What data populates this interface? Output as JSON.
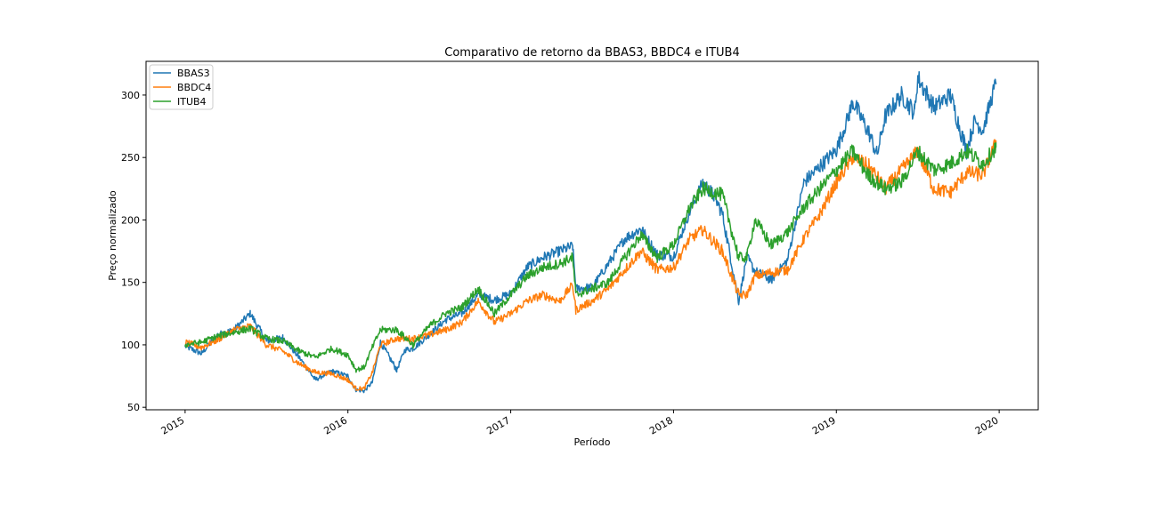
{
  "chart_data": {
    "type": "line",
    "title": "Comparativo de retorno da BBAS3, BBDC4 e ITUB4",
    "xlabel": "Período",
    "ylabel": "Preço normalizado",
    "x_ticks": [
      "2015",
      "2016",
      "2017",
      "2018",
      "2019",
      "2020"
    ],
    "y_ticks": [
      50,
      100,
      150,
      200,
      250,
      300
    ],
    "xlim": [
      2014.76,
      2020.24
    ],
    "ylim": [
      48,
      327
    ],
    "legend": "top-left",
    "grid": false,
    "colors": [
      "#1f77b4",
      "#ff7f0e",
      "#2ca02c"
    ],
    "series": [
      {
        "name": "BBAS3",
        "x": [
          2015.0,
          2015.1,
          2015.2,
          2015.3,
          2015.4,
          2015.5,
          2015.6,
          2015.7,
          2015.8,
          2015.9,
          2016.0,
          2016.05,
          2016.1,
          2016.15,
          2016.2,
          2016.3,
          2016.35,
          2016.4,
          2016.5,
          2016.6,
          2016.7,
          2016.8,
          2016.9,
          2017.0,
          2017.1,
          2017.2,
          2017.3,
          2017.38,
          2017.4,
          2017.5,
          2017.6,
          2017.7,
          2017.8,
          2017.9,
          2018.0,
          2018.1,
          2018.18,
          2018.25,
          2018.3,
          2018.35,
          2018.4,
          2018.45,
          2018.5,
          2018.6,
          2018.7,
          2018.8,
          2018.9,
          2019.0,
          2019.08,
          2019.1,
          2019.2,
          2019.25,
          2019.3,
          2019.4,
          2019.48,
          2019.5,
          2019.55,
          2019.6,
          2019.7,
          2019.8,
          2019.85,
          2019.9,
          2019.98
        ],
        "values": [
          99,
          93,
          108,
          112,
          125,
          103,
          106,
          90,
          72,
          79,
          75,
          64,
          63,
          70,
          102,
          80,
          96,
          97,
          108,
          120,
          125,
          140,
          136,
          141,
          162,
          170,
          175,
          179,
          145,
          146,
          165,
          185,
          193,
          172,
          171,
          207,
          230,
          219,
          205,
          170,
          135,
          170,
          159,
          152,
          168,
          230,
          243,
          256,
          285,
          295,
          270,
          252,
          283,
          300,
          286,
          314,
          302,
          290,
          300,
          255,
          280,
          272,
          310
        ]
      },
      {
        "name": "BBDC4",
        "x": [
          2015.0,
          2015.1,
          2015.2,
          2015.3,
          2015.4,
          2015.5,
          2015.6,
          2015.7,
          2015.8,
          2015.9,
          2016.0,
          2016.05,
          2016.1,
          2016.15,
          2016.2,
          2016.3,
          2016.4,
          2016.5,
          2016.6,
          2016.7,
          2016.8,
          2016.9,
          2017.0,
          2017.1,
          2017.2,
          2017.3,
          2017.38,
          2017.4,
          2017.5,
          2017.6,
          2017.7,
          2017.8,
          2017.9,
          2018.0,
          2018.1,
          2018.18,
          2018.3,
          2018.4,
          2018.45,
          2018.5,
          2018.6,
          2018.7,
          2018.8,
          2018.9,
          2019.0,
          2019.1,
          2019.2,
          2019.3,
          2019.4,
          2019.5,
          2019.6,
          2019.7,
          2019.8,
          2019.9,
          2019.98
        ],
        "values": [
          102,
          98,
          104,
          112,
          115,
          100,
          95,
          85,
          78,
          77,
          72,
          65,
          65,
          78,
          100,
          105,
          105,
          108,
          112,
          118,
          135,
          118,
          125,
          135,
          140,
          135,
          148,
          128,
          135,
          145,
          160,
          175,
          160,
          162,
          185,
          192,
          175,
          140,
          140,
          155,
          158,
          160,
          185,
          205,
          230,
          250,
          243,
          225,
          240,
          255,
          225,
          222,
          238,
          236,
          262
        ]
      },
      {
        "name": "ITUB4",
        "x": [
          2015.0,
          2015.1,
          2015.2,
          2015.3,
          2015.4,
          2015.5,
          2015.6,
          2015.7,
          2015.8,
          2015.9,
          2016.0,
          2016.05,
          2016.1,
          2016.15,
          2016.2,
          2016.3,
          2016.4,
          2016.5,
          2016.6,
          2016.7,
          2016.8,
          2016.9,
          2017.0,
          2017.1,
          2017.2,
          2017.3,
          2017.38,
          2017.4,
          2017.5,
          2017.6,
          2017.7,
          2017.8,
          2017.9,
          2018.0,
          2018.1,
          2018.18,
          2018.3,
          2018.4,
          2018.45,
          2018.5,
          2018.6,
          2018.7,
          2018.8,
          2018.9,
          2019.0,
          2019.1,
          2019.2,
          2019.3,
          2019.4,
          2019.5,
          2019.6,
          2019.7,
          2019.8,
          2019.9,
          2019.98
        ],
        "values": [
          100,
          102,
          107,
          110,
          113,
          105,
          103,
          95,
          90,
          97,
          92,
          80,
          82,
          98,
          112,
          112,
          100,
          115,
          125,
          130,
          145,
          125,
          140,
          155,
          162,
          165,
          170,
          140,
          145,
          150,
          170,
          188,
          170,
          180,
          210,
          225,
          220,
          170,
          170,
          200,
          180,
          190,
          210,
          225,
          240,
          255,
          235,
          225,
          230,
          255,
          240,
          245,
          255,
          245,
          258
        ]
      }
    ]
  }
}
